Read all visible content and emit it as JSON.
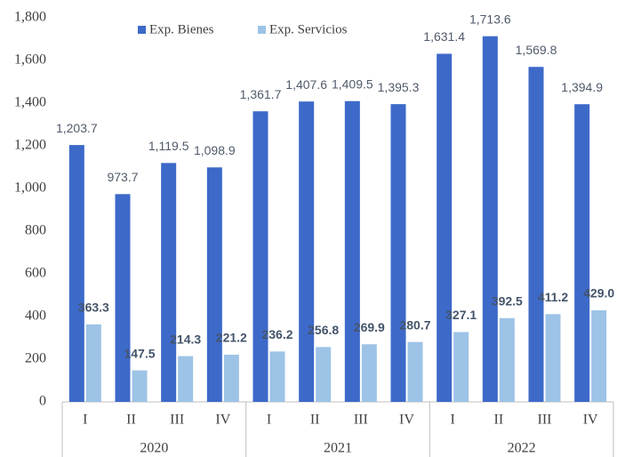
{
  "chart_data": {
    "type": "bar",
    "categories": [
      "I",
      "II",
      "III",
      "IV",
      "I",
      "II",
      "III",
      "IV",
      "I",
      "II",
      "III",
      "IV"
    ],
    "x_groups": [
      "2020",
      "2021",
      "2022"
    ],
    "series": [
      {
        "name": "Exp. Bienes",
        "color": "#3d69c9",
        "values": [
          1203.7,
          973.7,
          1119.5,
          1098.9,
          1361.7,
          1407.6,
          1409.5,
          1395.3,
          1631.4,
          1713.6,
          1569.8,
          1394.9
        ],
        "value_labels": [
          "1,203.7",
          "973.7",
          "1,119.5",
          "1,098.9",
          "1,361.7",
          "1,407.6",
          "1,409.5",
          "1,395.3",
          "1,631.4",
          "1,713.6",
          "1,569.8",
          "1,394.9"
        ]
      },
      {
        "name": "Exp. Servicios",
        "color": "#9dc3e6",
        "values": [
          363.3,
          147.5,
          214.3,
          221.2,
          236.2,
          256.8,
          269.9,
          280.7,
          327.1,
          392.5,
          411.2,
          429.0
        ],
        "value_labels": [
          "363.3",
          "147.5",
          "214.3",
          "221.2",
          "236.2",
          "256.8",
          "269.9",
          "280.7",
          "327.1",
          "392.5",
          "411.2",
          "429.0"
        ]
      }
    ],
    "ylim": [
      0,
      1800
    ],
    "yticks": [
      0,
      200,
      400,
      600,
      800,
      {
        "value": 1000,
        "label": "1,000"
      },
      {
        "value": 1200,
        "label": "1,200"
      },
      {
        "value": 1400,
        "label": "1,400"
      },
      {
        "value": 1600,
        "label": "1,600"
      },
      {
        "value": 1800,
        "label": "1,800"
      }
    ],
    "legend": "top"
  }
}
